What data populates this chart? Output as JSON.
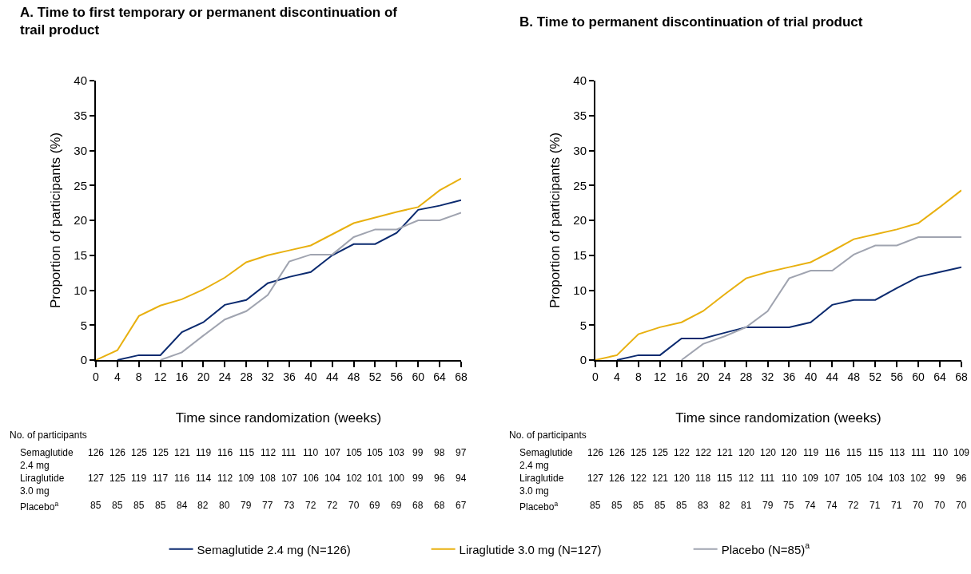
{
  "chart_data": [
    {
      "type": "line",
      "title": "A. Time to first temporary or permanent discontinuation of trail product",
      "xlabel": "Time since randomization (weeks)",
      "ylabel": "Proportion of participants (%)",
      "x": [
        0,
        4,
        8,
        12,
        16,
        20,
        24,
        28,
        32,
        36,
        40,
        44,
        48,
        52,
        56,
        60,
        64,
        68
      ],
      "xlim": [
        0,
        68
      ],
      "xticks": [
        0,
        4,
        8,
        12,
        16,
        20,
        24,
        28,
        32,
        36,
        40,
        44,
        48,
        52,
        56,
        60,
        64,
        68
      ],
      "ylim": [
        0,
        40
      ],
      "yticks": [
        0,
        5,
        10,
        15,
        20,
        25,
        30,
        35,
        40
      ],
      "grid": false,
      "legend": "bottom",
      "marker": "none",
      "line_style": "solid",
      "series": [
        {
          "name": "Semaglutide 2.4 mg (N=126)",
          "color": "#0b2a6f",
          "values": [
            null,
            0,
            0.7,
            0.7,
            4.0,
            5.4,
            7.9,
            8.6,
            11.0,
            11.9,
            12.6,
            15.0,
            16.6,
            16.6,
            18.2,
            21.5,
            22.1,
            22.9
          ]
        },
        {
          "name": "Liraglutide 3.0 mg (N=127)",
          "color": "#e8b00f",
          "values": [
            0,
            1.4,
            6.3,
            7.8,
            8.7,
            10.1,
            11.8,
            14.0,
            15.0,
            15.7,
            16.4,
            18.0,
            19.6,
            20.4,
            21.2,
            21.9,
            24.3,
            26.0
          ]
        },
        {
          "name": "Placebo (N=85)$^{a}$",
          "color": "#a0a4b0",
          "values": [
            null,
            null,
            null,
            0,
            1.1,
            3.5,
            5.8,
            7.0,
            9.3,
            14.1,
            15.1,
            15.1,
            17.6,
            18.7,
            18.7,
            20.0,
            20.0,
            21.1
          ]
        }
      ],
      "annotations": [
        "No. of participants",
        "Semaglutide 2.4 mg",
        "126 126 125 125 121 119 116 115 112 111 110 107 105 105 103 99 98 97",
        "Liraglutide 3.0 mg",
        "127 125 119 117 116 114 112 109 108 107 106 104 102 101 100 99 96 94",
        "Placebo$^{a}$",
        "85 85 85 85 84 82 80 79 77 73 72 72 70 69 69 68 68 67"
      ]
    },
    {
      "type": "line",
      "title": "B. Time to permanent discontinuation of trial product",
      "xlabel": "Time since randomization (weeks)",
      "ylabel": "Proportion of participants (%)",
      "x": [
        0,
        4,
        8,
        12,
        16,
        20,
        24,
        28,
        32,
        36,
        40,
        44,
        48,
        52,
        56,
        60,
        64,
        68
      ],
      "xlim": [
        0,
        68
      ],
      "xticks": [
        0,
        4,
        8,
        12,
        16,
        20,
        24,
        28,
        32,
        36,
        40,
        44,
        48,
        52,
        56,
        60,
        64,
        68
      ],
      "ylim": [
        0,
        40
      ],
      "yticks": [
        0,
        5,
        10,
        15,
        20,
        25,
        30,
        35,
        40
      ],
      "grid": false,
      "marker": "none",
      "line_style": "solid",
      "series": [
        {
          "color": "#0b2a6f",
          "values": [
            null,
            0,
            0.7,
            0.7,
            3.1,
            3.1,
            3.9,
            4.7,
            4.7,
            4.7,
            5.4,
            7.9,
            8.6,
            8.6,
            10.3,
            11.9,
            12.6,
            13.3
          ]
        },
        {
          "color": "#e8b00f",
          "values": [
            0,
            0.7,
            3.7,
            4.7,
            5.4,
            7.0,
            9.4,
            11.7,
            12.6,
            13.3,
            14.0,
            15.6,
            17.3,
            18.0,
            18.7,
            19.6,
            21.9,
            24.3
          ]
        },
        {
          "color": "#a0a4b0",
          "values": [
            null,
            null,
            null,
            null,
            0,
            2.3,
            3.4,
            4.7,
            7.0,
            11.7,
            12.8,
            12.8,
            15.1,
            16.4,
            16.4,
            17.6,
            17.6,
            17.6
          ]
        }
      ],
      "annotations": [
        "No. of participants",
        "Semaglutide 2.4 mg",
        "126 126 125 125 122 122 121 120 120 120 119 116 115 115 113 111 110 109",
        "Liraglutide 3.0 mg",
        "127 126 122 121 120 118 115 112 111 110 109 107 105 104 103 102 99 96",
        "Placebo$^{a}$",
        "85 85 85 85 85 83 82 81 79 75 74 74 72 71 71 70 70 70"
      ]
    }
  ]
}
